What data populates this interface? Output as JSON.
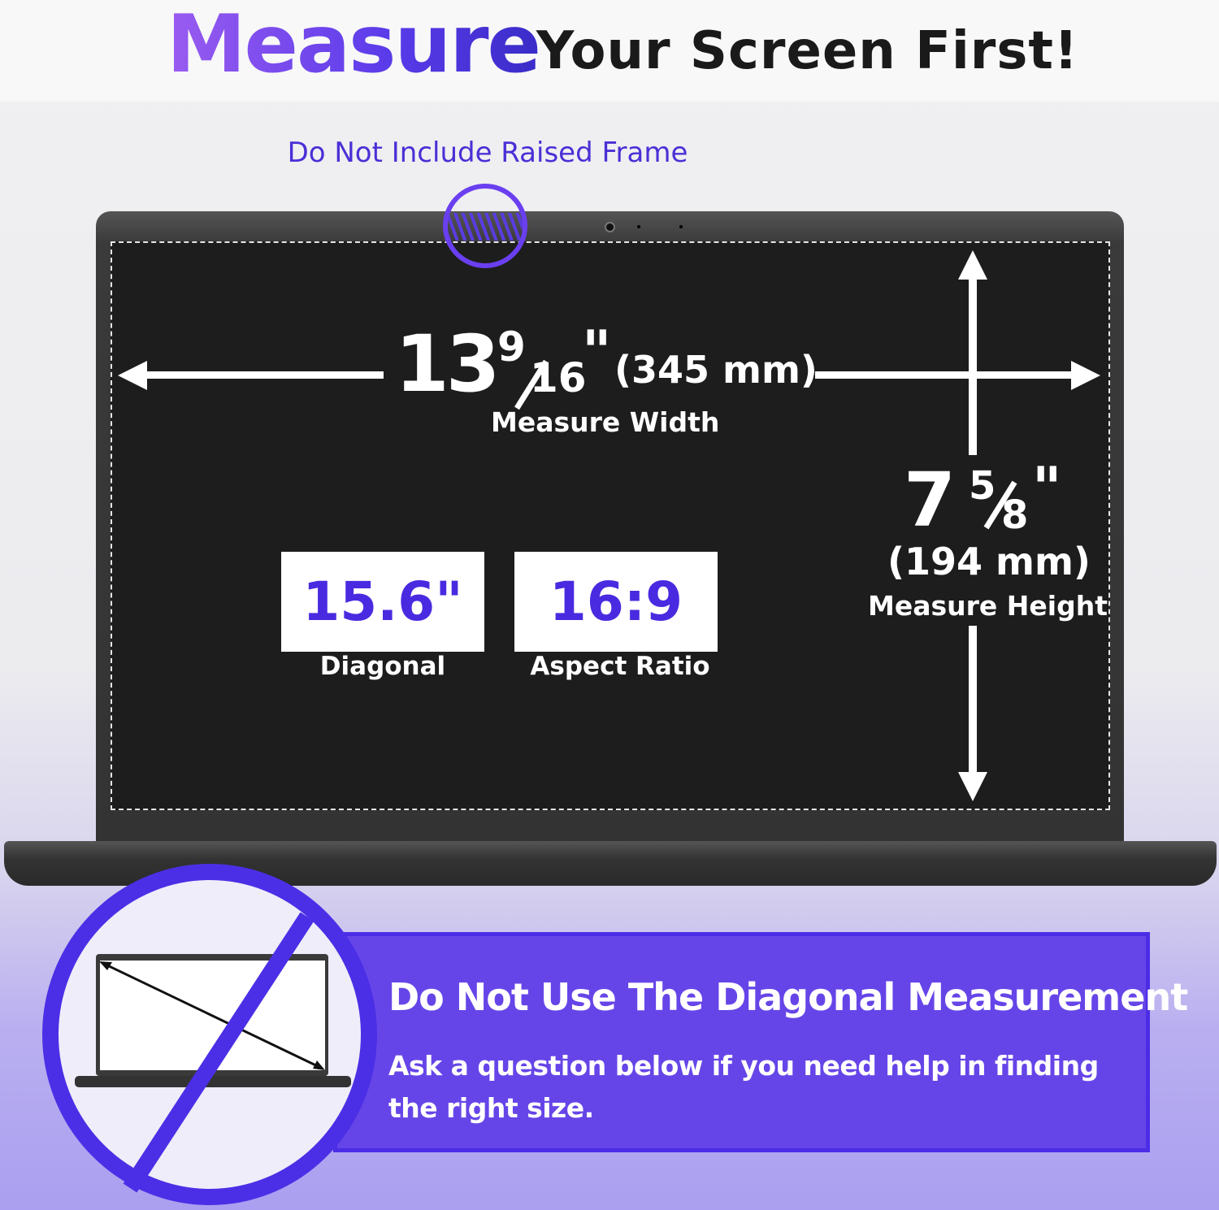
{
  "header": {
    "highlight": "Measure",
    "rest": "Your Screen First!"
  },
  "frame_note": "Do Not Include Raised Frame",
  "width": {
    "whole": "13",
    "numerator": "9",
    "denominator": "16",
    "inch_mark": "\"",
    "mm": "(345 mm)",
    "label": "Measure Width"
  },
  "height": {
    "whole": "7",
    "numerator": "5",
    "denominator": "8",
    "inch_mark": "\"",
    "mm": "(194 mm)",
    "label": "Measure Height"
  },
  "specs": [
    {
      "value": "15.6\"",
      "label": "Diagonal"
    },
    {
      "value": "16:9",
      "label": "Aspect Ratio"
    }
  ],
  "warning": {
    "title": "Do Not Use The Diagonal Measurement",
    "line1": "Ask a question below if you need help in finding",
    "line2": "the right size."
  },
  "colors": {
    "accent": "#4a2ae0",
    "banner": "#6645e8",
    "screen": "#1d1d1d"
  },
  "icons": [
    "webcam-icon",
    "raised-frame-highlight-icon",
    "no-diagonal-icon"
  ]
}
